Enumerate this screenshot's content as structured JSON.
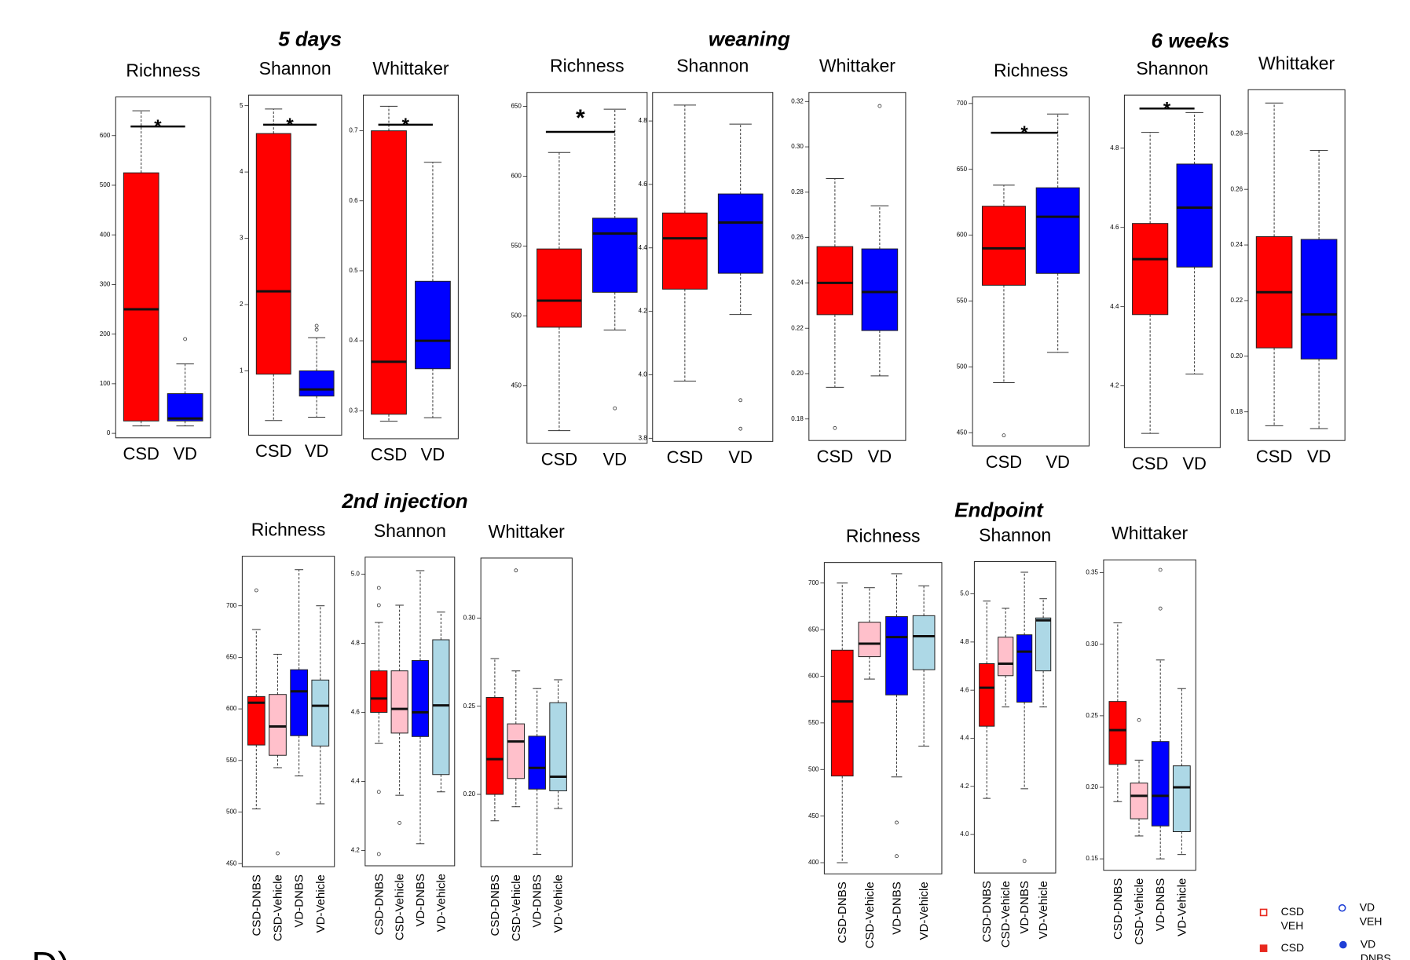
{
  "groups": [
    {
      "title": "5 days",
      "chart_data": [
        {
          "type": "box",
          "title": "Richness",
          "categories": [
            "CSD",
            "VD"
          ],
          "colors": [
            "#ff0000",
            "#0000ff"
          ],
          "ylim": [
            -9,
            678
          ],
          "yticks": [
            0,
            100,
            200,
            300,
            400,
            500,
            600
          ],
          "annotation": "*",
          "boxes": [
            {
              "min": 15,
              "q1": 25,
              "median": 250,
              "q3": 525,
              "max": 650,
              "outliers": []
            },
            {
              "min": 15,
              "q1": 25,
              "median": 30,
              "q3": 80,
              "max": 140,
              "outliers": [
                190
              ]
            }
          ]
        },
        {
          "type": "box",
          "title": "Shannon",
          "categories": [
            "CSD",
            "VD"
          ],
          "colors": [
            "#ff0000",
            "#0000ff"
          ],
          "ylim": [
            0.03,
            5.16
          ],
          "yticks": [
            1,
            2,
            3,
            4,
            5
          ],
          "annotation": "*",
          "boxes": [
            {
              "min": 0.25,
              "q1": 0.95,
              "median": 2.2,
              "q3": 4.58,
              "max": 4.95,
              "outliers": []
            },
            {
              "min": 0.3,
              "q1": 0.62,
              "median": 0.72,
              "q3": 1.0,
              "max": 1.5,
              "outliers": [
                1.62,
                1.68
              ]
            }
          ]
        },
        {
          "type": "box",
          "title": "Whittaker",
          "categories": [
            "CSD",
            "VD"
          ],
          "colors": [
            "#ff0000",
            "#0000ff"
          ],
          "ylim": [
            0.26,
            0.751
          ],
          "yticks": [
            0.3,
            0.4,
            0.5,
            0.6,
            0.7
          ],
          "annotation": "*",
          "boxes": [
            {
              "min": 0.285,
              "q1": 0.295,
              "median": 0.37,
              "q3": 0.7,
              "max": 0.735,
              "outliers": []
            },
            {
              "min": 0.29,
              "q1": 0.36,
              "median": 0.4,
              "q3": 0.485,
              "max": 0.655,
              "outliers": []
            }
          ]
        }
      ]
    },
    {
      "title": "weaning",
      "chart_data": [
        {
          "type": "box",
          "title": "Richness",
          "categories": [
            "CSD",
            "VD"
          ],
          "colors": [
            "#ff0000",
            "#0000ff"
          ],
          "ylim": [
            409,
            660
          ],
          "yticks": [
            450,
            500,
            550,
            600,
            650
          ],
          "annotation": "*",
          "boxes": [
            {
              "min": 418,
              "q1": 492,
              "median": 511,
              "q3": 548,
              "max": 617,
              "outliers": []
            },
            {
              "min": 490,
              "q1": 517,
              "median": 559,
              "q3": 570,
              "max": 648,
              "outliers": [
                434
              ]
            }
          ]
        },
        {
          "type": "box",
          "title": "Shannon",
          "categories": [
            "CSD",
            "VD"
          ],
          "colors": [
            "#ff0000",
            "#0000ff"
          ],
          "ylim": [
            3.79,
            4.89
          ],
          "yticks": [
            3.8,
            {
              "value": 4,
              "label": "4.0"
            },
            4.2,
            4.4,
            4.6,
            4.8
          ],
          "boxes": [
            {
              "min": 3.98,
              "q1": 4.27,
              "median": 4.43,
              "q3": 4.51,
              "max": 4.85,
              "outliers": []
            },
            {
              "min": 4.19,
              "q1": 4.32,
              "median": 4.48,
              "q3": 4.57,
              "max": 4.79,
              "outliers": [
                3.92,
                3.83
              ]
            }
          ]
        },
        {
          "type": "box",
          "title": "Whittaker",
          "categories": [
            "CSD",
            "VD"
          ],
          "colors": [
            "#ff0000",
            "#0000ff"
          ],
          "ylim": [
            0.1705,
            0.324
          ],
          "yticks": [
            0.18,
            {
              "value": 0.2,
              "label": "0.20"
            },
            0.22,
            0.24,
            0.26,
            0.28,
            {
              "value": 0.3,
              "label": "0.30"
            },
            0.32
          ],
          "boxes": [
            {
              "min": 0.194,
              "q1": 0.226,
              "median": 0.24,
              "q3": 0.256,
              "max": 0.286,
              "outliers": [
                0.176
              ]
            },
            {
              "min": 0.199,
              "q1": 0.219,
              "median": 0.236,
              "q3": 0.255,
              "max": 0.274,
              "outliers": [
                0.318
              ]
            }
          ]
        }
      ]
    },
    {
      "title": "6 weeks",
      "chart_data": [
        {
          "type": "box",
          "title": "Richness",
          "categories": [
            "CSD",
            "VD"
          ],
          "colors": [
            "#ff0000",
            "#0000ff"
          ],
          "ylim": [
            440,
            705
          ],
          "yticks": [
            450,
            500,
            550,
            600,
            650,
            700
          ],
          "annotation": "*",
          "boxes": [
            {
              "min": 488,
              "q1": 562,
              "median": 590,
              "q3": 622,
              "max": 638,
              "outliers": [
                448
              ]
            },
            {
              "min": 511,
              "q1": 571,
              "median": 614,
              "q3": 636,
              "max": 692,
              "outliers": []
            }
          ]
        },
        {
          "type": "box",
          "title": "Shannon",
          "categories": [
            "CSD",
            "VD"
          ],
          "colors": [
            "#ff0000",
            "#0000ff"
          ],
          "ylim": [
            4.044,
            4.934
          ],
          "yticks": [
            4.2,
            4.4,
            4.6,
            4.8
          ],
          "annotation": "*",
          "boxes": [
            {
              "min": 4.08,
              "q1": 4.38,
              "median": 4.52,
              "q3": 4.61,
              "max": 4.84,
              "outliers": []
            },
            {
              "min": 4.23,
              "q1": 4.5,
              "median": 4.65,
              "q3": 4.76,
              "max": 4.89,
              "outliers": []
            }
          ]
        },
        {
          "type": "box",
          "title": "Whittaker",
          "categories": [
            "CSD",
            "VD"
          ],
          "colors": [
            "#ff0000",
            "#0000ff"
          ],
          "ylim": [
            0.1697,
            0.2958
          ],
          "yticks": [
            0.18,
            {
              "value": 0.2,
              "label": "0.20"
            },
            0.22,
            0.24,
            0.26,
            0.28
          ],
          "boxes": [
            {
              "min": 0.175,
              "q1": 0.203,
              "median": 0.223,
              "q3": 0.243,
              "max": 0.291,
              "outliers": []
            },
            {
              "min": 0.174,
              "q1": 0.199,
              "median": 0.215,
              "q3": 0.242,
              "max": 0.274,
              "outliers": []
            }
          ]
        }
      ]
    },
    {
      "title": "2nd injection",
      "chart_data": [
        {
          "type": "box",
          "title": "Richness",
          "categories": [
            "CSD-DNBS",
            "CSD-Vehicle",
            "VD-DNBS",
            "VD-Vehicle"
          ],
          "colors": [
            "#ff0000",
            "#ffc0cb",
            "#0000ff",
            "#add8e6"
          ],
          "ylim": [
            447,
            748
          ],
          "yticks": [
            450,
            500,
            550,
            600,
            650,
            700
          ],
          "boxes": [
            {
              "min": 503,
              "q1": 565,
              "median": 606,
              "q3": 612,
              "max": 677,
              "outliers": [
                715
              ]
            },
            {
              "min": 543,
              "q1": 555,
              "median": 583,
              "q3": 614,
              "max": 653,
              "outliers": [
                460
              ]
            },
            {
              "min": 535,
              "q1": 574,
              "median": 617,
              "q3": 638,
              "max": 735,
              "outliers": []
            },
            {
              "min": 508,
              "q1": 564,
              "median": 603,
              "q3": 628,
              "max": 700,
              "outliers": []
            }
          ]
        },
        {
          "type": "box",
          "title": "Shannon",
          "categories": [
            "CSD-DNBS",
            "CSD-Vehicle",
            "VD-DNBS",
            "VD-Vehicle"
          ],
          "colors": [
            "#ff0000",
            "#ffc0cb",
            "#0000ff",
            "#add8e6"
          ],
          "ylim": [
            4.156,
            5.049
          ],
          "yticks": [
            4.2,
            4.4,
            4.6,
            4.8,
            {
              "value": 5,
              "label": "5.0"
            }
          ],
          "boxes": [
            {
              "min": 4.51,
              "q1": 4.6,
              "median": 4.64,
              "q3": 4.72,
              "max": 4.86,
              "outliers": [
                4.96,
                4.91,
                4.37,
                4.19
              ]
            },
            {
              "min": 4.36,
              "q1": 4.54,
              "median": 4.61,
              "q3": 4.72,
              "max": 4.91,
              "outliers": [
                4.28
              ]
            },
            {
              "min": 4.22,
              "q1": 4.53,
              "median": 4.6,
              "q3": 4.75,
              "max": 5.01,
              "outliers": []
            },
            {
              "min": 4.37,
              "q1": 4.42,
              "median": 4.62,
              "q3": 4.81,
              "max": 4.89,
              "outliers": []
            }
          ]
        },
        {
          "type": "box",
          "title": "Whittaker",
          "categories": [
            "CSD-DNBS",
            "CSD-Vehicle",
            "VD-DNBS",
            "VD-Vehicle"
          ],
          "colors": [
            "#ff0000",
            "#ffc0cb",
            "#0000ff",
            "#add8e6"
          ],
          "ylim": [
            0.159,
            0.334
          ],
          "yticks": [
            {
              "value": 0.2,
              "label": "0.20"
            },
            0.25,
            {
              "value": 0.3,
              "label": "0.30"
            }
          ],
          "boxes": [
            {
              "min": 0.185,
              "q1": 0.2,
              "median": 0.22,
              "q3": 0.255,
              "max": 0.277,
              "outliers": []
            },
            {
              "min": 0.193,
              "q1": 0.209,
              "median": 0.23,
              "q3": 0.24,
              "max": 0.27,
              "outliers": [
                0.327
              ]
            },
            {
              "min": 0.166,
              "q1": 0.203,
              "median": 0.215,
              "q3": 0.233,
              "max": 0.26,
              "outliers": []
            },
            {
              "min": 0.192,
              "q1": 0.202,
              "median": 0.21,
              "q3": 0.252,
              "max": 0.265,
              "outliers": []
            }
          ]
        }
      ]
    },
    {
      "title": "Endpoint",
      "chart_data": [
        {
          "type": "box",
          "title": "Richness",
          "categories": [
            "CSD-DNBS",
            "CSD-Vehicle",
            "VD-DNBS",
            "VD-Vehicle"
          ],
          "colors": [
            "#ff0000",
            "#ffc0cb",
            "#0000ff",
            "#add8e6"
          ],
          "ylim": [
            388,
            722
          ],
          "yticks": [
            400,
            450,
            500,
            550,
            600,
            650,
            700
          ],
          "boxes": [
            {
              "min": 400,
              "q1": 493,
              "median": 573,
              "q3": 628,
              "max": 700,
              "outliers": []
            },
            {
              "min": 597,
              "q1": 621,
              "median": 635,
              "q3": 658,
              "max": 695,
              "outliers": []
            },
            {
              "min": 492,
              "q1": 580,
              "median": 642,
              "q3": 664,
              "max": 710,
              "outliers": [
                443,
                407
              ]
            },
            {
              "min": 525,
              "q1": 607,
              "median": 643,
              "q3": 665,
              "max": 697,
              "outliers": []
            }
          ]
        },
        {
          "type": "box",
          "title": "Shannon",
          "categories": [
            "CSD-DNBS",
            "CSD-Vehicle",
            "VD-DNBS",
            "VD-Vehicle"
          ],
          "colors": [
            "#ff0000",
            "#ffc0cb",
            "#0000ff",
            "#add8e6"
          ],
          "ylim": [
            3.84,
            5.134
          ],
          "yticks": [
            {
              "value": 4,
              "label": "4.0"
            },
            4.2,
            4.4,
            4.6,
            4.8,
            {
              "value": 5,
              "label": "5.0"
            }
          ],
          "boxes": [
            {
              "min": 4.15,
              "q1": 4.45,
              "median": 4.61,
              "q3": 4.71,
              "max": 4.97,
              "outliers": []
            },
            {
              "min": 4.53,
              "q1": 4.66,
              "median": 4.71,
              "q3": 4.82,
              "max": 4.94,
              "outliers": []
            },
            {
              "min": 4.19,
              "q1": 4.55,
              "median": 4.76,
              "q3": 4.83,
              "max": 5.09,
              "outliers": [
                3.89
              ]
            },
            {
              "min": 4.53,
              "q1": 4.68,
              "median": 4.89,
              "q3": 4.9,
              "max": 4.98,
              "outliers": []
            }
          ]
        },
        {
          "type": "box",
          "title": "Whittaker",
          "categories": [
            "CSD-DNBS",
            "CSD-Vehicle",
            "VD-DNBS",
            "VD-Vehicle"
          ],
          "colors": [
            "#ff0000",
            "#ffc0cb",
            "#0000ff",
            "#add8e6"
          ],
          "ylim": [
            0.142,
            0.359
          ],
          "yticks": [
            0.15,
            {
              "value": 0.2,
              "label": "0.20"
            },
            0.25,
            {
              "value": 0.3,
              "label": "0.30"
            },
            0.35
          ],
          "boxes": [
            {
              "min": 0.19,
              "q1": 0.216,
              "median": 0.24,
              "q3": 0.26,
              "max": 0.315,
              "outliers": []
            },
            {
              "min": 0.166,
              "q1": 0.178,
              "median": 0.194,
              "q3": 0.203,
              "max": 0.219,
              "outliers": [
                0.247
              ]
            },
            {
              "min": 0.15,
              "q1": 0.173,
              "median": 0.194,
              "q3": 0.232,
              "max": 0.289,
              "outliers": [
                0.352,
                0.325
              ]
            },
            {
              "min": 0.153,
              "q1": 0.169,
              "median": 0.2,
              "q3": 0.215,
              "max": 0.269,
              "outliers": []
            }
          ]
        }
      ]
    }
  ],
  "legend": [
    {
      "lines": [
        "CSD",
        "VEH"
      ],
      "color": "#e8281e",
      "marker": "open-square"
    },
    {
      "lines": [
        "VD",
        "VEH"
      ],
      "color": "#1f3fd6",
      "marker": "open-circle"
    },
    {
      "lines": [
        "CSD"
      ],
      "color": "#e8281e",
      "marker": "square"
    },
    {
      "lines": [
        "VD",
        "DNBS"
      ],
      "color": "#1f3fd6",
      "marker": "circle"
    }
  ],
  "panel_label": "D)"
}
